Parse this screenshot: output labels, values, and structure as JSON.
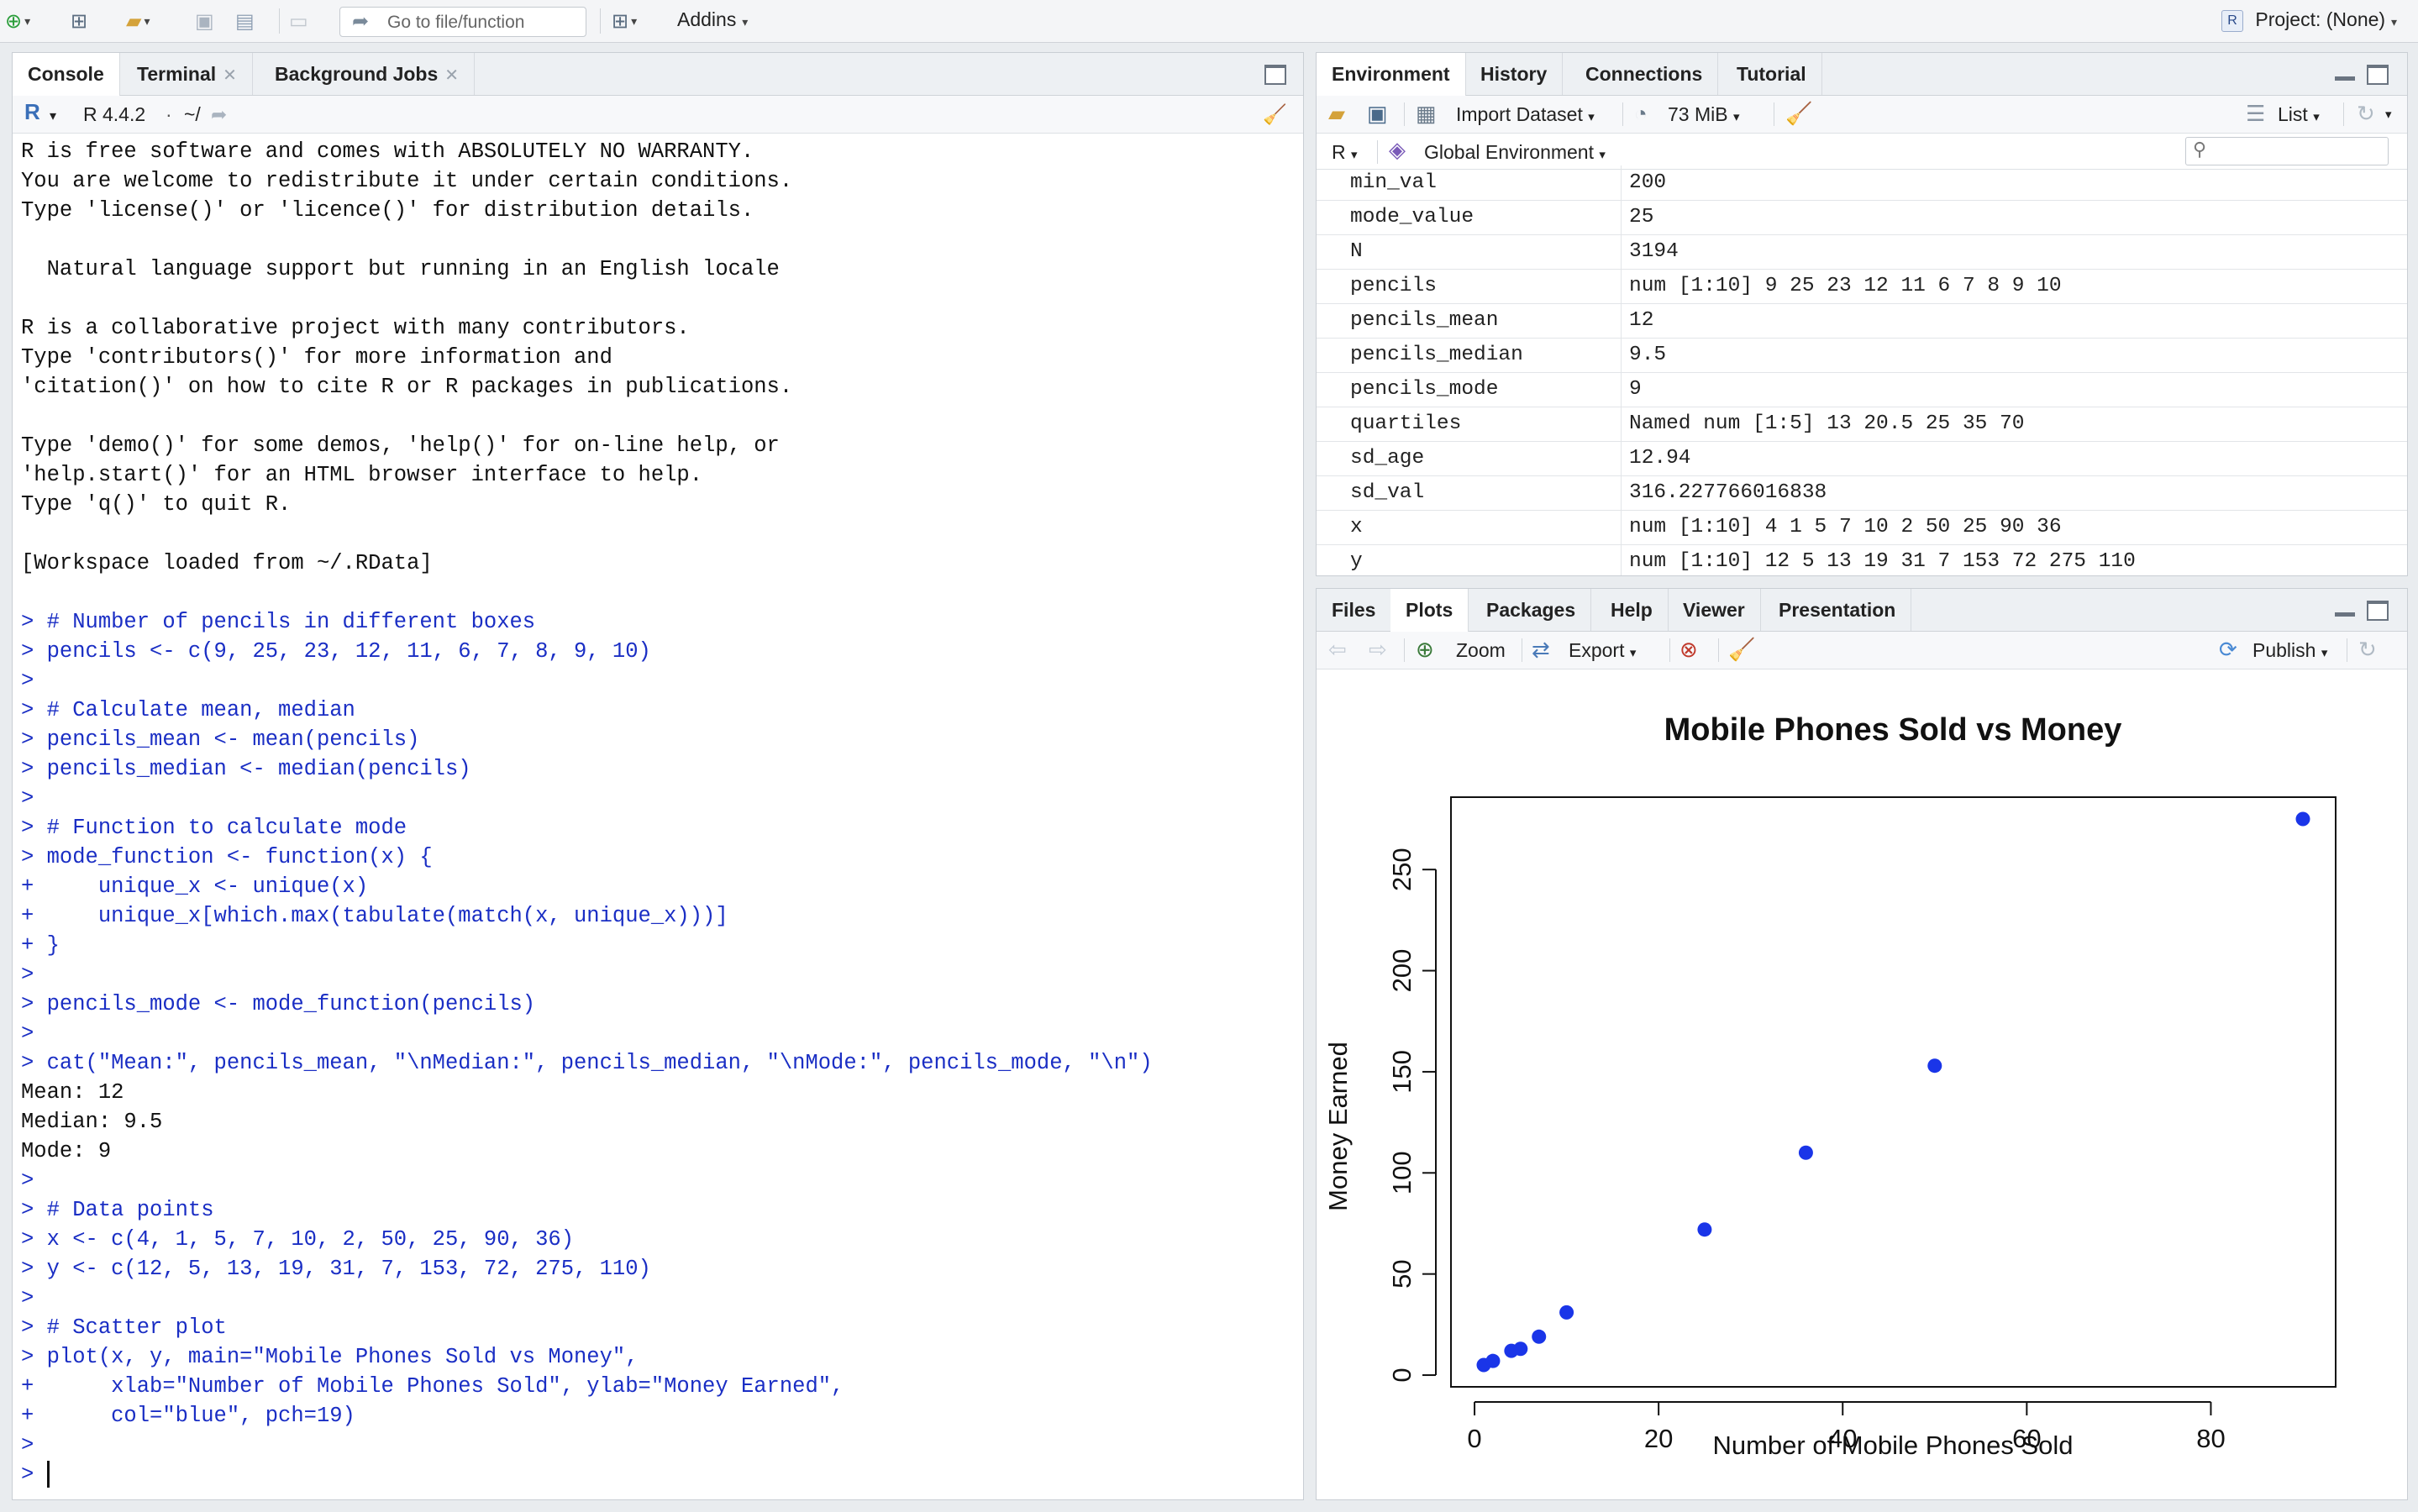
{
  "toolbar": {
    "goto_placeholder": "Go to file/function",
    "addins_label": "Addins",
    "project_label": "Project: (None)"
  },
  "console_pane": {
    "tabs": [
      "Console",
      "Terminal",
      "Background Jobs"
    ],
    "r_version": "R 4.4.2",
    "path": "~/",
    "lines": [
      {
        "text": "R is free software and comes with ABSOLUTELY NO WARRANTY.",
        "cmd": false
      },
      {
        "text": "You are welcome to redistribute it under certain conditions.",
        "cmd": false
      },
      {
        "text": "Type 'license()' or 'licence()' for distribution details.",
        "cmd": false
      },
      {
        "text": "",
        "cmd": false
      },
      {
        "text": "  Natural language support but running in an English locale",
        "cmd": false
      },
      {
        "text": "",
        "cmd": false
      },
      {
        "text": "R is a collaborative project with many contributors.",
        "cmd": false
      },
      {
        "text": "Type 'contributors()' for more information and",
        "cmd": false
      },
      {
        "text": "'citation()' on how to cite R or R packages in publications.",
        "cmd": false
      },
      {
        "text": "",
        "cmd": false
      },
      {
        "text": "Type 'demo()' for some demos, 'help()' for on-line help, or",
        "cmd": false
      },
      {
        "text": "'help.start()' for an HTML browser interface to help.",
        "cmd": false
      },
      {
        "text": "Type 'q()' to quit R.",
        "cmd": false
      },
      {
        "text": "",
        "cmd": false
      },
      {
        "text": "[Workspace loaded from ~/.RData]",
        "cmd": false
      },
      {
        "text": "",
        "cmd": false
      },
      {
        "text": "> # Number of pencils in different boxes",
        "cmd": true
      },
      {
        "text": "> pencils <- c(9, 25, 23, 12, 11, 6, 7, 8, 9, 10)",
        "cmd": true
      },
      {
        "text": ">",
        "cmd": true
      },
      {
        "text": "> # Calculate mean, median",
        "cmd": true
      },
      {
        "text": "> pencils_mean <- mean(pencils)",
        "cmd": true
      },
      {
        "text": "> pencils_median <- median(pencils)",
        "cmd": true
      },
      {
        "text": ">",
        "cmd": true
      },
      {
        "text": "> # Function to calculate mode",
        "cmd": true
      },
      {
        "text": "> mode_function <- function(x) {",
        "cmd": true
      },
      {
        "text": "+     unique_x <- unique(x)",
        "cmd": true
      },
      {
        "text": "+     unique_x[which.max(tabulate(match(x, unique_x)))]",
        "cmd": true
      },
      {
        "text": "+ }",
        "cmd": true
      },
      {
        "text": ">",
        "cmd": true
      },
      {
        "text": "> pencils_mode <- mode_function(pencils)",
        "cmd": true
      },
      {
        "text": ">",
        "cmd": true
      },
      {
        "text": "> cat(\"Mean:\", pencils_mean, \"\\nMedian:\", pencils_median, \"\\nMode:\", pencils_mode, \"\\n\")",
        "cmd": true
      },
      {
        "text": "Mean: 12",
        "cmd": false
      },
      {
        "text": "Median: 9.5",
        "cmd": false
      },
      {
        "text": "Mode: 9",
        "cmd": false
      },
      {
        "text": ">",
        "cmd": true
      },
      {
        "text": "> # Data points",
        "cmd": true
      },
      {
        "text": "> x <- c(4, 1, 5, 7, 10, 2, 50, 25, 90, 36)",
        "cmd": true
      },
      {
        "text": "> y <- c(12, 5, 13, 19, 31, 7, 153, 72, 275, 110)",
        "cmd": true
      },
      {
        "text": ">",
        "cmd": true
      },
      {
        "text": "> # Scatter plot",
        "cmd": true
      },
      {
        "text": "> plot(x, y, main=\"Mobile Phones Sold vs Money\",",
        "cmd": true
      },
      {
        "text": "+      xlab=\"Number of Mobile Phones Sold\", ylab=\"Money Earned\",",
        "cmd": true
      },
      {
        "text": "+      col=\"blue\", pch=19)",
        "cmd": true
      },
      {
        "text": ">",
        "cmd": true
      }
    ],
    "prompt": ">"
  },
  "env_pane": {
    "tabs": [
      "Environment",
      "History",
      "Connections",
      "Tutorial"
    ],
    "import_label": "Import Dataset",
    "memory_label": "73 MiB",
    "view_label": "List",
    "lang_label": "R",
    "scope_label": "Global Environment",
    "variables": [
      {
        "name": "min_val",
        "value": "200"
      },
      {
        "name": "mode_value",
        "value": "25"
      },
      {
        "name": "N",
        "value": "3194"
      },
      {
        "name": "pencils",
        "value": "num [1:10] 9 25 23 12 11 6 7 8 9 10"
      },
      {
        "name": "pencils_mean",
        "value": "12"
      },
      {
        "name": "pencils_median",
        "value": "9.5"
      },
      {
        "name": "pencils_mode",
        "value": "9"
      },
      {
        "name": "quartiles",
        "value": "Named num [1:5] 13 20.5 25 35 70"
      },
      {
        "name": "sd_age",
        "value": "12.94"
      },
      {
        "name": "sd_val",
        "value": "316.227766016838"
      },
      {
        "name": "x",
        "value": "num [1:10] 4 1 5 7 10 2 50 25 90 36"
      },
      {
        "name": "y",
        "value": "num [1:10] 12 5 13 19 31 7 153 72 275 110"
      }
    ]
  },
  "plots_pane": {
    "tabs": [
      "Files",
      "Plots",
      "Packages",
      "Help",
      "Viewer",
      "Presentation"
    ],
    "zoom_label": "Zoom",
    "export_label": "Export",
    "publish_label": "Publish"
  },
  "chart_data": {
    "type": "scatter",
    "title": "Mobile Phones Sold vs Money",
    "xlabel": "Number of Mobile Phones Sold",
    "ylabel": "Money Earned",
    "x": [
      4,
      1,
      5,
      7,
      10,
      2,
      50,
      25,
      90,
      36
    ],
    "y": [
      12,
      5,
      13,
      19,
      31,
      7,
      153,
      72,
      275,
      110
    ],
    "xlim": [
      1,
      90
    ],
    "ylim": [
      5,
      275
    ],
    "xticks": [
      0,
      20,
      40,
      60,
      80
    ],
    "yticks": [
      0,
      50,
      100,
      150,
      200,
      250
    ],
    "point_color": "#1a35e8",
    "grid": false
  },
  "colors": {
    "command_text": "#1a2ec4",
    "accent_blue": "#4a8ad4"
  }
}
